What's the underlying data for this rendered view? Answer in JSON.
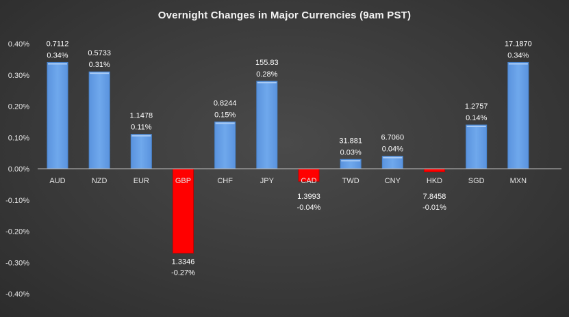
{
  "chart_data": {
    "type": "bar",
    "title": "Overnight Changes in Major Currencies (9am PST)",
    "xlabel": "",
    "ylabel": "",
    "ylim": [
      -0.004,
      0.004
    ],
    "yticks": [
      0.004,
      0.003,
      0.002,
      0.001,
      0.0,
      -0.001,
      -0.002,
      -0.003,
      -0.004
    ],
    "ytick_labels": [
      "0.40%",
      "0.30%",
      "0.20%",
      "0.10%",
      "0.00%",
      "-0.10%",
      "-0.20%",
      "-0.30%",
      "-0.40%"
    ],
    "grid": false,
    "legend": "none",
    "categories": [
      "AUD",
      "NZD",
      "EUR",
      "GBP",
      "CHF",
      "JPY",
      "CAD",
      "TWD",
      "CNY",
      "HKD",
      "SGD",
      "MXN"
    ],
    "values": [
      0.0034,
      0.0031,
      0.0011,
      -0.0027,
      0.0015,
      0.0028,
      -0.0004,
      0.0003,
      0.0004,
      -0.0001,
      0.0014,
      0.0034
    ],
    "rates": [
      "0.7112",
      "0.5733",
      "1.1478",
      "1.3346",
      "0.8244",
      "155.83",
      "1.3993",
      "31.881",
      "6.7060",
      "7.8458",
      "1.2757",
      "17.1870"
    ],
    "percent_labels": [
      "0.34%",
      "0.31%",
      "0.11%",
      "-0.27%",
      "0.15%",
      "0.28%",
      "-0.04%",
      "0.03%",
      "0.04%",
      "-0.01%",
      "0.14%",
      "0.34%"
    ],
    "colors": {
      "positive": "#6fa8ec",
      "positive_edge": "#4a86d0",
      "negative": "#ff0000",
      "negative_edge": "#c00000",
      "axis": "#bfbfbf",
      "negative_category_label": "#ff2020"
    }
  }
}
